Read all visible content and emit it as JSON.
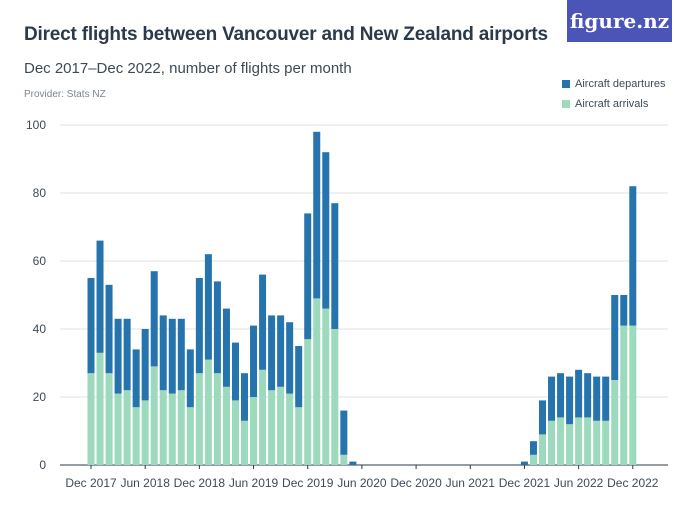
{
  "header": {
    "title": "Direct flights between Vancouver and New Zealand airports",
    "subtitle": "Dec 2017–Dec 2022, number of flights per month",
    "provider": "Provider: Stats NZ",
    "logo_text": "figure.nz"
  },
  "colors": {
    "departures": "#2674ae",
    "arrivals": "#9cd9bd",
    "grid": "#dde1e5",
    "logo_bg": "#4b55b8"
  },
  "legend": {
    "position": "top-right",
    "items": [
      "Aircraft departures",
      "Aircraft arrivals"
    ]
  },
  "chart_data": {
    "type": "bar",
    "stacked": true,
    "xlabel": "",
    "ylabel": "",
    "ylim": [
      0,
      100
    ],
    "yticks": [
      0,
      20,
      40,
      60,
      80,
      100
    ],
    "grid": true,
    "x_tick_labels": [
      "Dec 2017",
      "Jun 2018",
      "Dec 2018",
      "Jun 2019",
      "Dec 2019",
      "Jun 2020",
      "Dec 2020",
      "Jun 2021",
      "Dec 2021",
      "Jun 2022",
      "Dec 2022"
    ],
    "x_tick_every": 6,
    "categories": [
      "Dec 2017",
      "Jan 2018",
      "Feb 2018",
      "Mar 2018",
      "Apr 2018",
      "May 2018",
      "Jun 2018",
      "Jul 2018",
      "Aug 2018",
      "Sep 2018",
      "Oct 2018",
      "Nov 2018",
      "Dec 2018",
      "Jan 2019",
      "Feb 2019",
      "Mar 2019",
      "Apr 2019",
      "May 2019",
      "Jun 2019",
      "Jul 2019",
      "Aug 2019",
      "Sep 2019",
      "Oct 2019",
      "Nov 2019",
      "Dec 2019",
      "Jan 2020",
      "Feb 2020",
      "Mar 2020",
      "Apr 2020",
      "May 2020",
      "Jun 2020",
      "Jul 2020",
      "Aug 2020",
      "Sep 2020",
      "Oct 2020",
      "Nov 2020",
      "Dec 2020",
      "Jan 2021",
      "Feb 2021",
      "Mar 2021",
      "Apr 2021",
      "May 2021",
      "Jun 2021",
      "Jul 2021",
      "Aug 2021",
      "Sep 2021",
      "Oct 2021",
      "Nov 2021",
      "Dec 2021",
      "Jan 2022",
      "Feb 2022",
      "Mar 2022",
      "Apr 2022",
      "May 2022",
      "Jun 2022",
      "Jul 2022",
      "Aug 2022",
      "Sep 2022",
      "Oct 2022",
      "Nov 2022",
      "Dec 2022"
    ],
    "series": [
      {
        "name": "Aircraft arrivals",
        "values": [
          27,
          33,
          27,
          21,
          22,
          17,
          19,
          29,
          22,
          21,
          22,
          17,
          27,
          31,
          27,
          23,
          19,
          13,
          20,
          28,
          22,
          23,
          21,
          17,
          37,
          49,
          46,
          40,
          3,
          0,
          0,
          0,
          0,
          0,
          0,
          0,
          0,
          0,
          0,
          0,
          0,
          0,
          0,
          0,
          0,
          0,
          0,
          0,
          0,
          3,
          9,
          13,
          14,
          12,
          14,
          14,
          13,
          13,
          25,
          41,
          41
        ]
      },
      {
        "name": "Aircraft departures",
        "values": [
          28,
          33,
          26,
          22,
          21,
          17,
          21,
          28,
          22,
          22,
          21,
          17,
          28,
          31,
          27,
          23,
          17,
          14,
          21,
          28,
          22,
          21,
          21,
          18,
          37,
          49,
          46,
          37,
          13,
          1,
          0,
          0,
          0,
          0,
          0,
          0,
          0,
          0,
          0,
          0,
          0,
          0,
          0,
          0,
          0,
          0,
          0,
          0,
          1,
          4,
          10,
          13,
          13,
          14,
          14,
          13,
          13,
          13,
          25,
          9,
          41
        ]
      }
    ]
  }
}
